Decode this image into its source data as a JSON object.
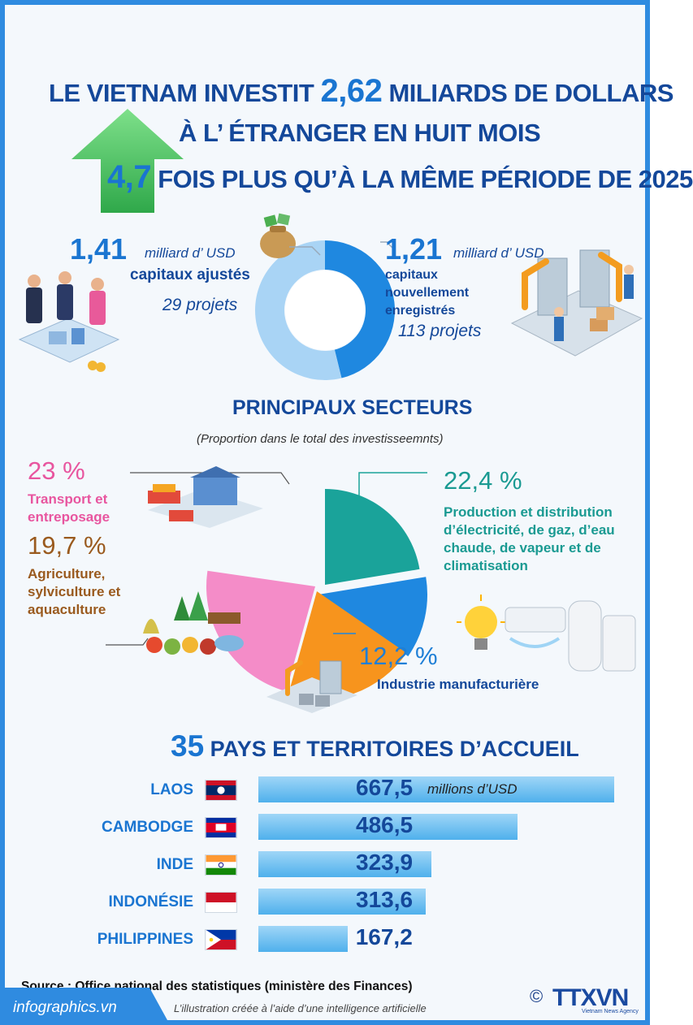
{
  "title": {
    "line1_pre": "LE  VIETNAM INVESTIT",
    "line1_num": "2,62",
    "line1_post": "MILIARDS DE DOLLARS",
    "line2": "À L’ ÉTRANGER EN HUIT MOIS",
    "line3_num": "4,7",
    "line3_post": "FOIS PLUS QU’À LA MÊME PÉRIODE DE 2025"
  },
  "donut": {
    "left": {
      "value": "1,41",
      "unit": "milliard d’ USD",
      "label": "capitaux ajustés",
      "projects": "29 projets"
    },
    "right": {
      "value": "1,21",
      "unit": "milliard d’ USD",
      "label_lines": [
        "capitaux",
        "nouvellement",
        "enregistrés"
      ],
      "projects": "113 projets"
    }
  },
  "sectors": {
    "title": "PRINCIPAUX SECTEURS",
    "subtitle": "(Proportion dans le total des investisseemnts)",
    "items": [
      {
        "pct": "23 %",
        "label": "Transport et entreposage",
        "color": "#f48cc8"
      },
      {
        "pct": "19,7 %",
        "label": "Agriculture, sylviculture et aquaculture",
        "color": "#f7941d"
      },
      {
        "pct": "22,4 %",
        "label": "Production et distribution d’électricité, de gaz, d’eau chaude, de vapeur et de climatisation",
        "color": "#1aa39a"
      },
      {
        "pct": "12,2 %",
        "label": "Industrie manufacturière",
        "color": "#1f88e0"
      }
    ]
  },
  "countries": {
    "title_num": "35",
    "title_text": "PAYS ET TERRITOIRES D’ACCUEIL",
    "unit": "millions d’USD"
  },
  "chart_data": [
    {
      "type": "pie",
      "categories": [
        "capitaux ajustés",
        "capitaux nouvellement enregistrés"
      ],
      "values": [
        1.41,
        1.21
      ],
      "colors": [
        "#a9d4f5",
        "#1f88e0"
      ]
    },
    {
      "type": "pie",
      "title": "PRINCIPAUX SECTEURS",
      "subtitle": "(Proportion dans le total des investisseemnts)",
      "categories": [
        "Production et distribution d’électricité, de gaz, d’eau chaude, de vapeur et de climatisation",
        "Industrie manufacturière",
        "Agriculture, sylviculture et aquaculture",
        "Transport et entreposage"
      ],
      "values": [
        22.4,
        12.2,
        19.7,
        23
      ],
      "colors": [
        "#1aa39a",
        "#1f88e0",
        "#f7941d",
        "#f48cc8"
      ]
    },
    {
      "type": "bar",
      "title": "35 PAYS ET TERRITOIRES D’ACCUEIL",
      "categories": [
        "LAOS",
        "CAMBODGE",
        "INDE",
        "INDONÉSIE",
        "PHILIPPINES"
      ],
      "values": [
        667.5,
        486.5,
        323.9,
        313.6,
        167.2
      ],
      "value_labels": [
        "667,5",
        "486,5",
        "323,9",
        "313,6",
        "167,2"
      ],
      "unit": "millions d’USD"
    }
  ],
  "footer": {
    "source": "Source : Office national des statistiques (ministère des Finances)",
    "site": "infographics.vn",
    "note": "L’illustration créée à l’aide d’une intelligence artificielle",
    "copyright": "©",
    "brand": "TTXVN",
    "brand_sub": "Vietnam News Agency"
  }
}
